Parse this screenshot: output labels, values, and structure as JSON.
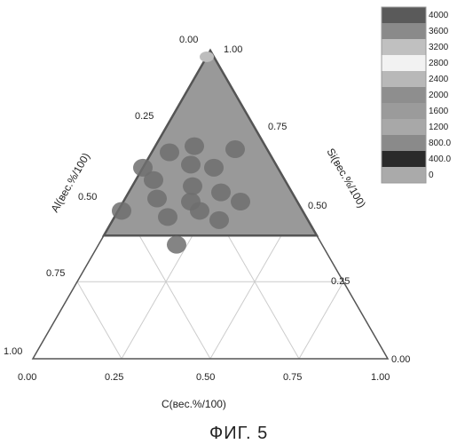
{
  "colors": {
    "region_fill": "#999999",
    "region_stroke": "#555555",
    "point": "#6e6e6e",
    "grid": "#cccccc",
    "axis": "#555555"
  },
  "chart_data": {
    "type": "scatter",
    "subtype": "ternary",
    "caption": "ФИГ. 5",
    "axes": {
      "left": {
        "label": "Al(вес.%/100)",
        "ticks": [
          "0.00",
          "0.25",
          "0.50",
          "0.75",
          "1.00"
        ]
      },
      "right": {
        "label": "Si(вес.%/100)",
        "ticks": [
          "1.00",
          "0.75",
          "0.50",
          "0.25",
          "0.00"
        ]
      },
      "bottom": {
        "label": "C(вес.%/100)",
        "ticks": [
          "0.00",
          "0.25",
          "0.50",
          "0.75",
          "1.00"
        ]
      }
    },
    "shaded_region": {
      "si_min": 0.4
    },
    "points": [
      {
        "c": 0.0,
        "si": 0.98,
        "al": 0.02
      },
      {
        "c": 0.23,
        "si": 0.68,
        "al": 0.09
      },
      {
        "c": 0.11,
        "si": 0.69,
        "al": 0.2
      },
      {
        "c": 0.05,
        "si": 0.67,
        "al": 0.28
      },
      {
        "c": 0.13,
        "si": 0.63,
        "al": 0.24
      },
      {
        "c": 0.2,
        "si": 0.62,
        "al": 0.18
      },
      {
        "c": 0.0,
        "si": 0.62,
        "al": 0.38
      },
      {
        "c": 0.05,
        "si": 0.58,
        "al": 0.37
      },
      {
        "c": 0.17,
        "si": 0.56,
        "al": 0.27
      },
      {
        "c": 0.26,
        "si": 0.54,
        "al": 0.2
      },
      {
        "c": 0.09,
        "si": 0.52,
        "al": 0.39
      },
      {
        "c": 0.19,
        "si": 0.51,
        "al": 0.3
      },
      {
        "c": 0.33,
        "si": 0.51,
        "al": 0.16
      },
      {
        "c": 0.23,
        "si": 0.48,
        "al": 0.29
      },
      {
        "c": 0.01,
        "si": 0.48,
        "al": 0.51
      },
      {
        "c": 0.15,
        "si": 0.46,
        "al": 0.39
      },
      {
        "c": 0.3,
        "si": 0.45,
        "al": 0.25
      },
      {
        "c": 0.22,
        "si": 0.37,
        "al": 0.41
      }
    ],
    "legend": {
      "placement": "top-right",
      "entries": [
        {
          "label": "4000",
          "color": "#5a5a5a"
        },
        {
          "label": "3600",
          "color": "#8a8a8a"
        },
        {
          "label": "3200",
          "color": "#c0c0c0"
        },
        {
          "label": "2800",
          "color": "#f2f2f2"
        },
        {
          "label": "2400",
          "color": "#b8b8b8"
        },
        {
          "label": "2000",
          "color": "#8e8e8e"
        },
        {
          "label": "1600",
          "color": "#9b9b9b"
        },
        {
          "label": "1200",
          "color": "#a8a8a8"
        },
        {
          "label": "800.0",
          "color": "#8a8a8a"
        },
        {
          "label": "400.0",
          "color": "#2a2a2a"
        },
        {
          "label": "0",
          "color": "#aaaaaa"
        }
      ]
    }
  }
}
